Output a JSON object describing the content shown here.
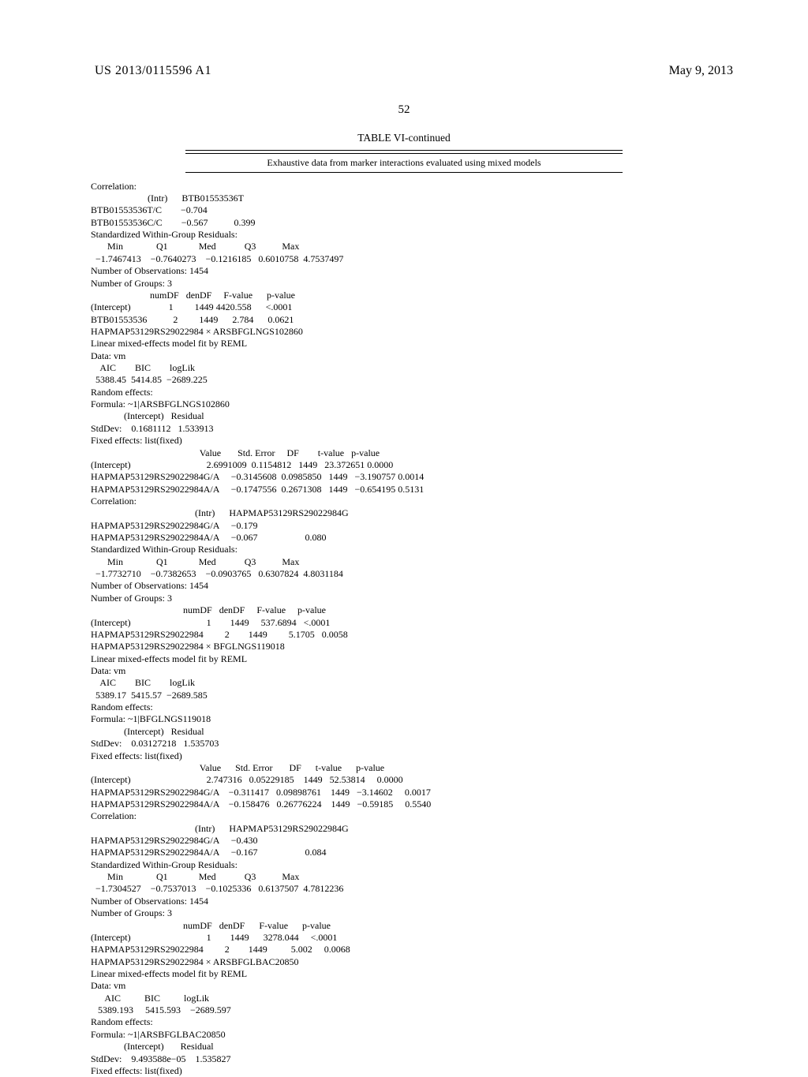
{
  "header": {
    "patent_id": "US 2013/0115596 A1",
    "date": "May 9, 2013",
    "page_number": "52"
  },
  "table": {
    "title": "TABLE VI-continued",
    "subtitle": "Exhaustive data from marker interactions evaluated using mixed models"
  },
  "section1": {
    "label": "Correlation:",
    "h1": "(Intr)",
    "h2": "BTB01553536T",
    "r1_label": "BTB01553536T/C",
    "r1_v1": "−0.704",
    "r2_label": "BTB01553536C/C",
    "r2_v1": "−0.567",
    "r2_v2": "0.399",
    "std_label": "Standardized Within-Group Residuals:",
    "min": "Min",
    "q1": "Q1",
    "med": "Med",
    "q3": "Q3",
    "max": "Max",
    "v_min": "−1.7467413",
    "v_q1": "−0.7640273",
    "v_med": "−0.1216185",
    "v_q3": "0.6010758",
    "v_max": "4.7537497",
    "obs": "Number of Observations: 1454",
    "groups": "Number of Groups: 3",
    "dh_numDF": "numDF",
    "dh_denDF": "denDF",
    "dh_F": "F-value",
    "dh_p": "p-value",
    "int_label": "(Intercept)",
    "int_numDF": "1",
    "int_denDF": "1449",
    "int_F": "4420.558",
    "int_p": "<.0001",
    "bt_label": "BTB01553536",
    "bt_numDF": "2",
    "bt_denDF": "1449",
    "bt_F": "2.784",
    "bt_p": "0.0621"
  },
  "section2": {
    "title": "HAPMAP53129RS29022984 × ARSBFGLNGS102860",
    "lme": "Linear mixed-effects model fit by REML",
    "data": "Data: vm",
    "aic": "AIC",
    "bic": "BIC",
    "loglik": "logLik",
    "v_aic": "5388.45",
    "v_bic": "5414.85",
    "v_loglik": "−2689.225",
    "rand": "Random effects:",
    "formula": "Formula: ~1|ARSBFGLNGS102860",
    "h_int": "(Intercept)",
    "h_res": "Residual",
    "std_label": "StdDev:",
    "std_int": "0.1681112",
    "std_res": "1.533913",
    "fixed": "Fixed effects: list(fixed)",
    "c_value": "Value",
    "c_se": "Std. Error",
    "c_df": "DF",
    "c_t": "t-value",
    "c_p": "p-value",
    "r1_l": "(Intercept)",
    "r1_v": "2.6991009",
    "r1_se": "0.1154812",
    "r1_df": "1449",
    "r1_t": "23.372651",
    "r1_p": "0.0000",
    "r2_l": "HAPMAP53129RS29022984G/A",
    "r2_v": "−0.3145608",
    "r2_se": "0.0985850",
    "r2_df": "1449",
    "r2_t": "−3.190757",
    "r2_p": "0.0014",
    "r3_l": "HAPMAP53129RS29022984A/A",
    "r3_v": "−0.1747556",
    "r3_se": "0.2671308",
    "r3_df": "1449",
    "r3_t": "−0.654195",
    "r3_p": "0.5131",
    "corr": "Correlation:",
    "ch1": "(Intr)",
    "ch2": "HAPMAP53129RS29022984G",
    "cr1_l": "HAPMAP53129RS29022984G/A",
    "cr1_v1": "−0.179",
    "cr2_l": "HAPMAP53129RS29022984A/A",
    "cr2_v1": "−0.067",
    "cr2_v2": "0.080",
    "std_resid": "Standardized Within-Group Residuals:",
    "min": "Min",
    "q1": "Q1",
    "med": "Med",
    "q3": "Q3",
    "max": "Max",
    "v_min": "−1.7732710",
    "v_q1": "−0.7382653",
    "v_med": "−0.0903765",
    "v_q3": "0.6307824",
    "v_max": "4.8031184",
    "obs": "Number of Observations: 1454",
    "groups": "Number of Groups: 3",
    "dh_numDF": "numDF",
    "dh_denDF": "denDF",
    "dh_F": "F-value",
    "dh_p": "p-value",
    "di_l": "(Intercept)",
    "di_n": "1",
    "di_d": "1449",
    "di_f": "537.6894",
    "di_p": "<.0001",
    "dh_l": "HAPMAP53129RS29022984",
    "dh_n": "2",
    "dh_d": "1449",
    "dh_f": "5.1705",
    "dh_pv": "0.0058"
  },
  "section3": {
    "title": "HAPMAP53129RS29022984 × BFGLNGS119018",
    "lme": "Linear mixed-effects model fit by REML",
    "data": "Data: vm",
    "aic": "AIC",
    "bic": "BIC",
    "loglik": "logLik",
    "v_aic": "5389.17",
    "v_bic": "5415.57",
    "v_loglik": "−2689.585",
    "rand": "Random effects:",
    "formula": "Formula: ~1|BFGLNGS119018",
    "h_int": "(Intercept)",
    "h_res": "Residual",
    "std_label": "StdDev:",
    "std_int": "0.03127218",
    "std_res": "1.535703",
    "fixed": "Fixed effects: list(fixed)",
    "c_value": "Value",
    "c_se": "Std. Error",
    "c_df": "DF",
    "c_t": "t-value",
    "c_p": "p-value",
    "r1_l": "(Intercept)",
    "r1_v": "2.747316",
    "r1_se": "0.05229185",
    "r1_df": "1449",
    "r1_t": "52.53814",
    "r1_p": "0.0000",
    "r2_l": "HAPMAP53129RS29022984G/A",
    "r2_v": "−0.311417",
    "r2_se": "0.09898761",
    "r2_df": "1449",
    "r2_t": "−3.14602",
    "r2_p": "0.0017",
    "r3_l": "HAPMAP53129RS29022984A/A",
    "r3_v": "−0.158476",
    "r3_se": "0.26776224",
    "r3_df": "1449",
    "r3_t": "−0.59185",
    "r3_p": "0.5540",
    "corr": "Correlation:",
    "ch1": "(Intr)",
    "ch2": "HAPMAP53129RS29022984G",
    "cr1_l": "HAPMAP53129RS29022984G/A",
    "cr1_v1": "−0.430",
    "cr2_l": "HAPMAP53129RS29022984A/A",
    "cr2_v1": "−0.167",
    "cr2_v2": "0.084",
    "std_resid": "Standardized Within-Group Residuals:",
    "min": "Min",
    "q1": "Q1",
    "med": "Med",
    "q3": "Q3",
    "max": "Max",
    "v_min": "−1.7304527",
    "v_q1": "−0.7537013",
    "v_med": "−0.1025336",
    "v_q3": "0.6137507",
    "v_max": "4.7812236",
    "obs": "Number of Observations: 1454",
    "groups": "Number of Groups: 3",
    "dh_numDF": "numDF",
    "dh_denDF": "denDF",
    "dh_F": "F-value",
    "dh_p": "p-value",
    "di_l": "(Intercept)",
    "di_n": "1",
    "di_d": "1449",
    "di_f": "3278.044",
    "di_p": "<.0001",
    "dh_l": "HAPMAP53129RS29022984",
    "dh_n": "2",
    "dh_d": "1449",
    "dh_f": "5.002",
    "dh_pv": "0.0068"
  },
  "section4": {
    "title": "HAPMAP53129RS29022984 × ARSBFGLBAC20850",
    "lme": "Linear mixed-effects model fit by REML",
    "data": "Data: vm",
    "aic": "AIC",
    "bic": "BIC",
    "loglik": "logLik",
    "v_aic": "5389.193",
    "v_bic": "5415.593",
    "v_loglik": "−2689.597",
    "rand": "Random effects:",
    "formula": "Formula: ~1|ARSBFGLBAC20850",
    "h_int": "(Intercept)",
    "h_res": "Residual",
    "std_label": "StdDev:",
    "std_int": "9.493588e−05",
    "std_res": "1.535827",
    "fixed": "Fixed effects: list(fixed)"
  }
}
